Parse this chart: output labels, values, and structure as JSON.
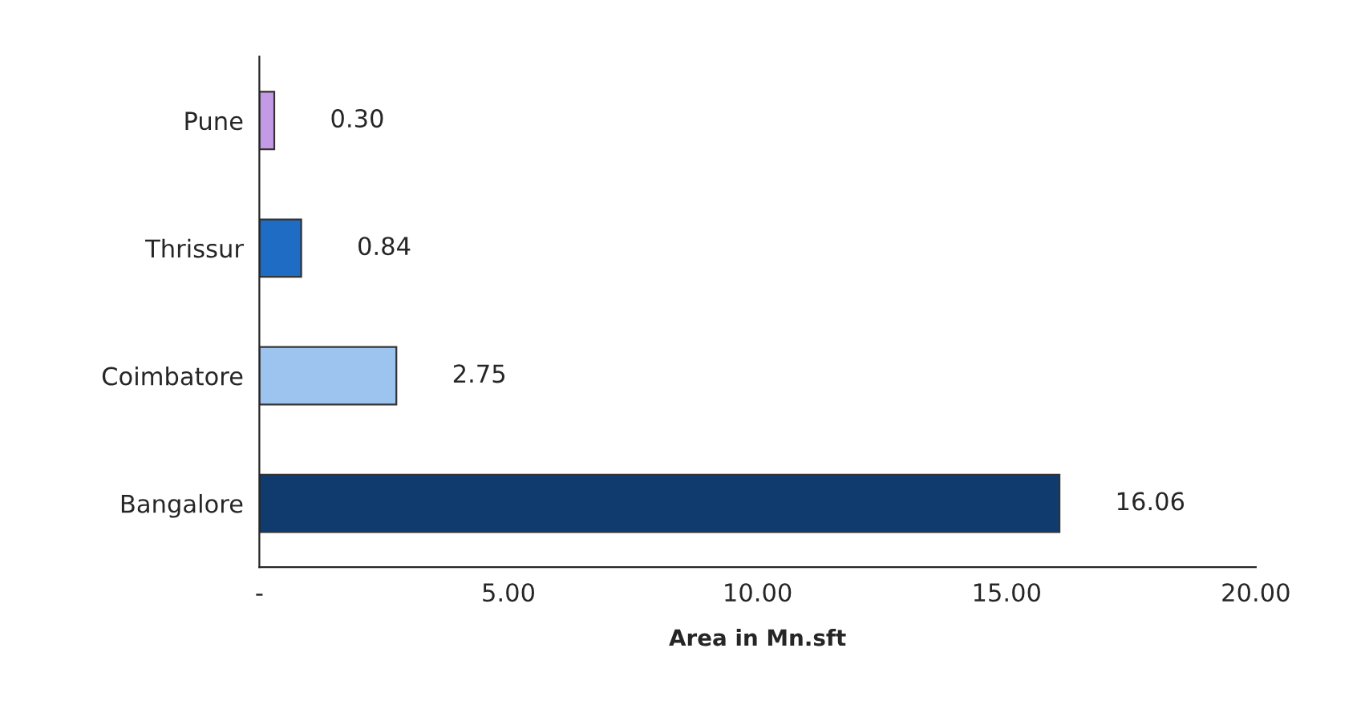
{
  "chart_data": {
    "type": "bar",
    "orientation": "horizontal",
    "xlabel": "Area in Mn.sft",
    "categories": [
      "Pune",
      "Thrissur",
      "Coimbatore",
      "Bangalore"
    ],
    "values": [
      0.3,
      0.84,
      2.75,
      16.06
    ],
    "colors": [
      "#c49ae6",
      "#1f6cc4",
      "#9cc4ee",
      "#0f3b6f"
    ],
    "value_labels": [
      "0.30",
      "0.84",
      "2.75",
      "16.06"
    ],
    "xlim": [
      0,
      20
    ],
    "xticks": [
      {
        "value": 0,
        "label": "-"
      },
      {
        "value": 5,
        "label": "5.00"
      },
      {
        "value": 10,
        "label": "10.00"
      },
      {
        "value": 15,
        "label": "15.00"
      },
      {
        "value": 20,
        "label": "20.00"
      }
    ],
    "grid": false,
    "legend": false
  }
}
